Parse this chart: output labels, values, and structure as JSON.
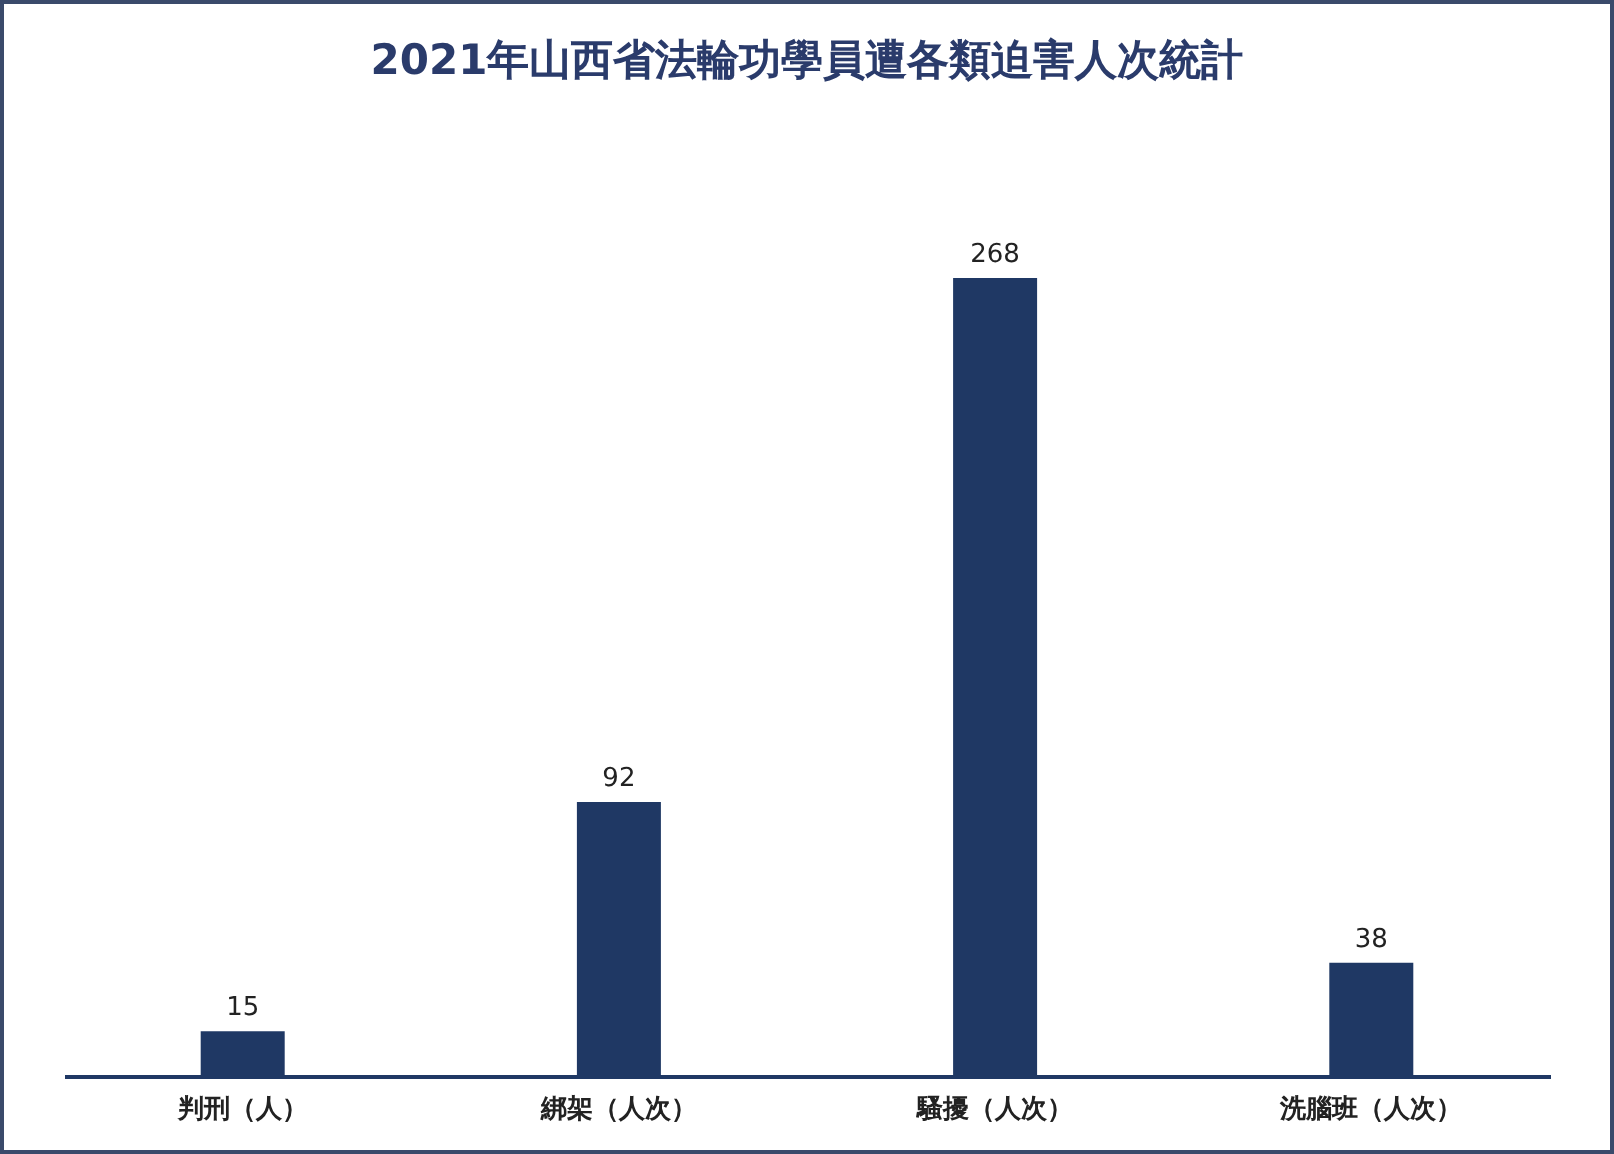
{
  "chart_data": {
    "type": "bar",
    "title": "2021年山西省法輪功學員遭各類迫害人次統計",
    "categories": [
      "判刑（人）",
      "綁架（人次）",
      "騷擾（人次）",
      "洗腦班（人次）"
    ],
    "values": [
      15,
      92,
      268,
      38
    ],
    "color": "#1f3864",
    "data_labels": true
  }
}
